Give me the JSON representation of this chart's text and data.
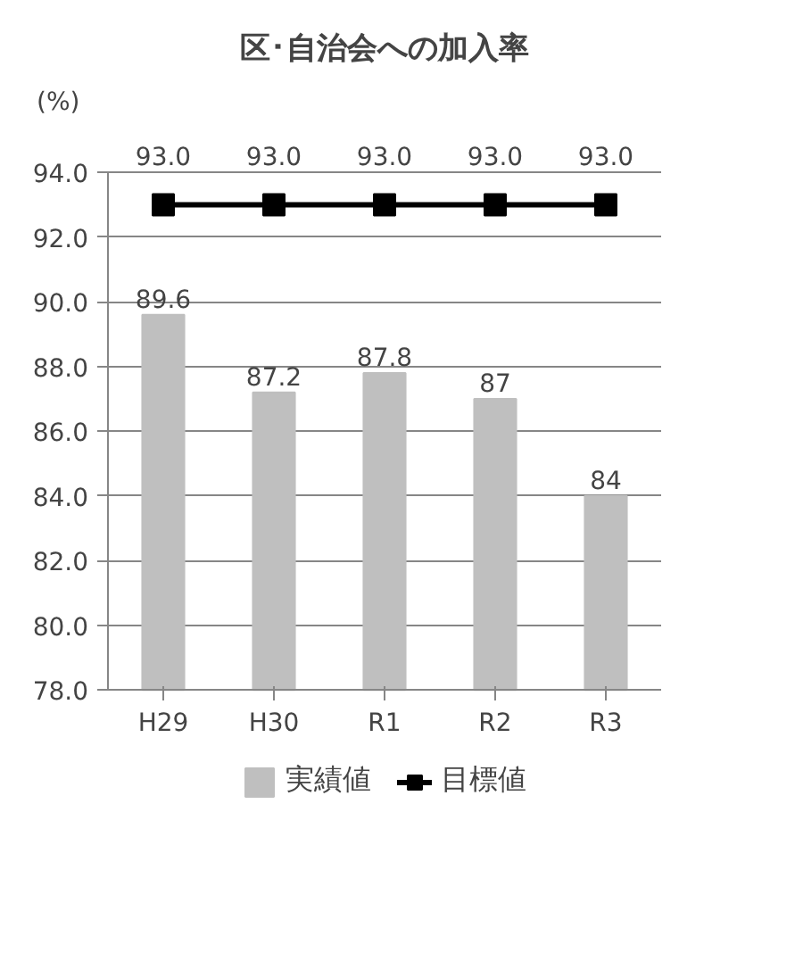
{
  "chart_data": {
    "type": "bar",
    "title": "区･自治会への加入率",
    "ylabel": "(%)",
    "categories": [
      "H29",
      "H30",
      "R1",
      "R2",
      "R3"
    ],
    "series": [
      {
        "name": "実績値",
        "color": "#bfbfbf",
        "values": [
          89.6,
          87.2,
          87.8,
          87,
          84
        ],
        "value_labels": [
          "89.6",
          "87.2",
          "87.8",
          "87",
          "84"
        ]
      },
      {
        "name": "目標値",
        "type": "line",
        "color": "#000000",
        "values": [
          93.0,
          93.0,
          93.0,
          93.0,
          93.0
        ],
        "value_labels": [
          "93.0",
          "93.0",
          "93.0",
          "93.0",
          "93.0"
        ],
        "marker": "square"
      }
    ],
    "ylim": [
      78,
      94
    ],
    "yticks": [
      {
        "value": 78,
        "label": "78.0"
      },
      {
        "value": 80,
        "label": "80.0"
      },
      {
        "value": 82,
        "label": "82.0"
      },
      {
        "value": 84,
        "label": "84.0"
      },
      {
        "value": 86,
        "label": "86.0"
      },
      {
        "value": 88,
        "label": "88.0"
      },
      {
        "value": 90,
        "label": "90.0"
      },
      {
        "value": 92,
        "label": "92.0"
      },
      {
        "value": 94,
        "label": "94.0"
      }
    ],
    "grid": "y",
    "legend": "bottom"
  }
}
